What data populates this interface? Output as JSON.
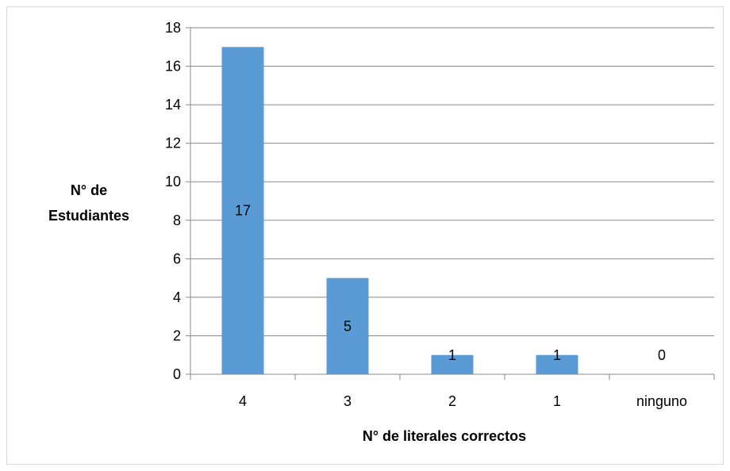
{
  "chart_data": {
    "type": "bar",
    "categories": [
      "4",
      "3",
      "2",
      "1",
      "ninguno"
    ],
    "values": [
      17,
      5,
      1,
      1,
      0
    ],
    "data_labels": [
      "17",
      "5",
      "1",
      "1",
      "0"
    ],
    "title": "",
    "xlabel": "N° de literales correctos",
    "ylabel_lines": [
      "N° de",
      "Estudiantes"
    ],
    "ylim": [
      0,
      18
    ],
    "y_ticks": [
      0,
      2,
      4,
      6,
      8,
      10,
      12,
      14,
      16,
      18
    ],
    "grid": true,
    "legend": "none",
    "bar_color": "#5B9BD5",
    "grid_color": "#898989"
  }
}
